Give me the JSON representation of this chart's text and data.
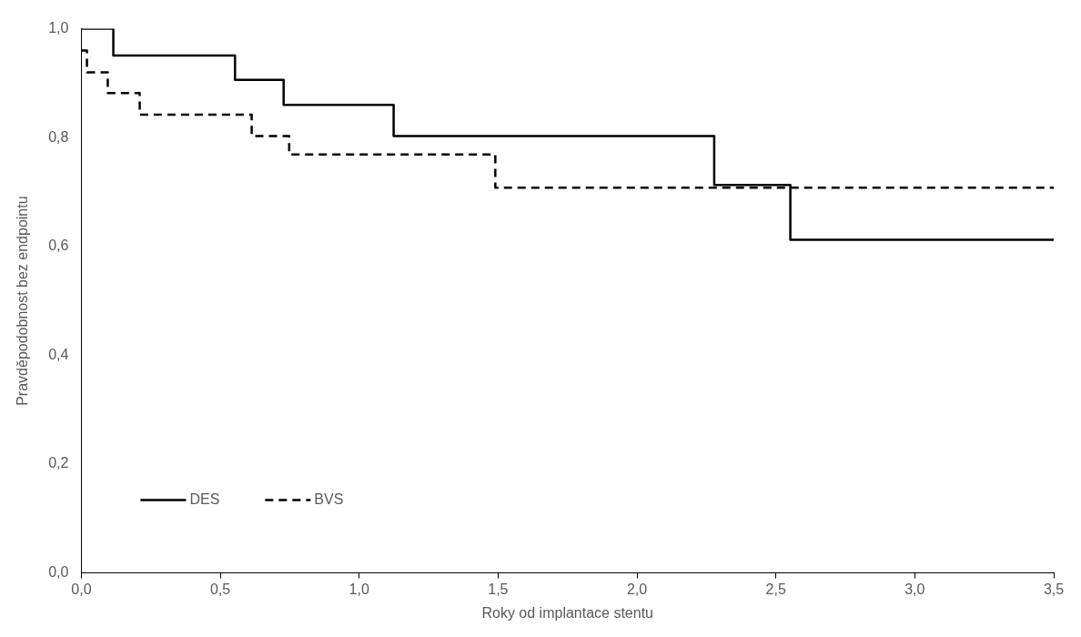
{
  "chart_data": {
    "type": "step",
    "xlabel": "Roky od implantace stentu",
    "ylabel": "Pravděpodobnost bez endpointu",
    "series": [
      {
        "name": "DES",
        "color": "#000000",
        "line_style": "solid",
        "x": [
          0,
          0.115,
          0.553,
          0.728,
          1.124,
          2.278,
          2.552,
          3.5
        ],
        "values": [
          1.0,
          0.951,
          0.906,
          0.86,
          0.803,
          0.713,
          0.612,
          0.612
        ]
      },
      {
        "name": "BVS",
        "color": "#000000",
        "line_style": "dashed",
        "x": [
          0,
          0.02,
          0.095,
          0.21,
          0.613,
          0.748,
          1.49,
          3.5
        ],
        "values": [
          0.96,
          0.92,
          0.882,
          0.842,
          0.803,
          0.769,
          0.708,
          0.708
        ]
      }
    ],
    "xlim": [
      0,
      3.5
    ],
    "ylim": [
      0,
      1
    ],
    "xticks": [
      {
        "value": 0,
        "label": "0,0"
      },
      {
        "value": 0.5,
        "label": "0,5"
      },
      {
        "value": 1,
        "label": "1,0"
      },
      {
        "value": 1.5,
        "label": "1,5"
      },
      {
        "value": 2,
        "label": "2,0"
      },
      {
        "value": 2.5,
        "label": "2,5"
      },
      {
        "value": 3,
        "label": "3,0"
      },
      {
        "value": 3.5,
        "label": "3,5"
      }
    ],
    "yticks": [
      {
        "value": 0,
        "label": "0,0"
      },
      {
        "value": 0.2,
        "label": "0,2"
      },
      {
        "value": 0.4,
        "label": "0,4"
      },
      {
        "value": 0.6,
        "label": "0,6"
      },
      {
        "value": 0.8,
        "label": "0,8"
      },
      {
        "value": 1,
        "label": "1,0"
      }
    ],
    "grid": false,
    "legend": "bottom left"
  }
}
